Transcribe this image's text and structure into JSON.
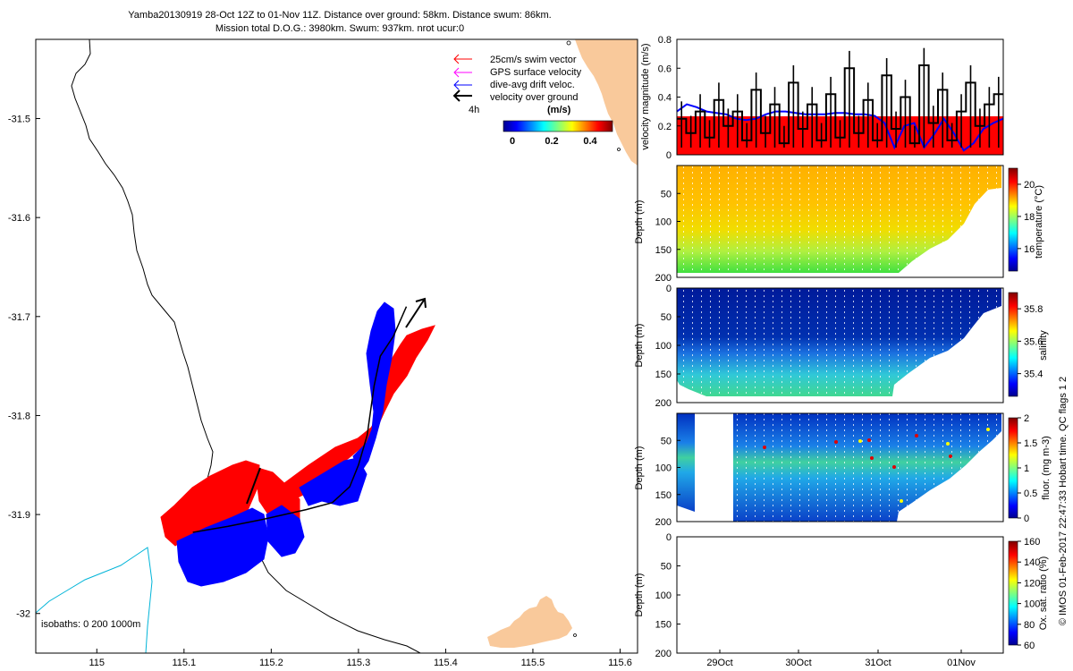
{
  "header": {
    "line1": "Yamba20130919 28-Oct 12Z to 01-Nov 11Z. Distance over ground: 58km. Distance swum: 86km.",
    "line2": "Mission total D.O.G.: 3980km. Swum: 937km. nrot ucur:0"
  },
  "footer_note": "© IMOS 01-Feb-2017 22:47:33 Hobart time. QC flags 1  2",
  "colors": {
    "land": "#f9c99b",
    "swim_vector": "#ff0000",
    "gps_surface": "#ff00ff",
    "drift": "#0000ff",
    "over_ground": "#000000",
    "isobath_200": "#000000",
    "isobath_1000": "#00b4d8"
  },
  "map": {
    "legend": [
      {
        "label": "25cm/s swim vector",
        "color": "#ff0000"
      },
      {
        "label": "GPS surface velocity",
        "color": "#ff00ff"
      },
      {
        "label": "dive-avg drift veloc.",
        "color": "#0000ff"
      },
      {
        "label": "velocity over ground",
        "color": "#000000"
      }
    ],
    "time_marker": "4h",
    "colorbar_title": "(m/s)",
    "colorbar_ticks": [
      "0",
      "0.2",
      "0.4"
    ],
    "isobaths_text": "isobaths: 0   200  1000m"
  },
  "chart_data": [
    {
      "type": "line",
      "panel": "map",
      "xlim": [
        114.93,
        115.62
      ],
      "ylim": [
        -32.04,
        -31.42
      ],
      "x_ticks": [
        "115",
        "115.1",
        "115.2",
        "115.3",
        "115.4",
        "115.5",
        "115.6"
      ],
      "y_ticks": [
        "-31.5",
        "-31.6",
        "-31.7",
        "-31.8",
        "-31.9",
        "-32"
      ],
      "series": [
        {
          "points": [
            [
              115.11,
              -31.918
            ],
            [
              115.15,
              -31.912
            ],
            [
              115.19,
              -31.905
            ],
            [
              115.24,
              -31.895
            ],
            [
              115.27,
              -31.888
            ],
            [
              115.29,
              -31.872
            ],
            [
              115.3,
              -31.85
            ],
            [
              115.31,
              -31.82
            ],
            [
              115.318,
              -31.77
            ],
            [
              115.325,
              -31.74
            ],
            [
              115.34,
              -31.72
            ],
            [
              115.355,
              -31.69
            ]
          ]
        }
      ]
    },
    {
      "type": "line",
      "panel": "velocity",
      "ylabel": "velocity magnitude (m/s)",
      "ylim": [
        0,
        0.8
      ],
      "y_ticks": [
        "0",
        "0.2",
        "0.4",
        "0.6",
        "0.8"
      ],
      "series": [
        {
          "color": "#ff0000",
          "values": [
            0.25,
            0.25,
            0.25,
            0.25,
            0.25,
            0.25,
            0.25,
            0.25,
            0.25,
            0.25
          ]
        },
        {
          "color": "#0000ff",
          "values": [
            0.3,
            0.35,
            0.33,
            0.3,
            0.29,
            0.28,
            0.25,
            0.24,
            0.25,
            0.28,
            0.3,
            0.3,
            0.29,
            0.28,
            0.28,
            0.28,
            0.29,
            0.29,
            0.28,
            0.28,
            0.27,
            0.22,
            0.05,
            0.2,
            0.22,
            0.05,
            0.14,
            0.25,
            0.15,
            0.03,
            0.08,
            0.18,
            0.22,
            0.25
          ]
        },
        {
          "color": "#000000",
          "values": [
            0.25,
            0.15,
            0.3,
            0.12,
            0.38,
            0.2,
            0.3,
            0.1,
            0.45,
            0.15,
            0.35,
            0.08,
            0.5,
            0.18,
            0.35,
            0.1,
            0.42,
            0.12,
            0.6,
            0.15,
            0.38,
            0.1,
            0.55,
            0.18,
            0.4,
            0.08,
            0.62,
            0.22,
            0.45,
            0.1,
            0.3,
            0.5,
            0.2,
            0.35,
            0.42
          ]
        }
      ]
    },
    {
      "type": "heatmap",
      "panel": "temperature",
      "ylabel": "Depth (m)",
      "colorbar_label": "temperature (°C)",
      "colorbar_ticks": [
        "16",
        "18",
        "20"
      ],
      "y_ticks": [
        "50",
        "100",
        "150",
        "200"
      ]
    },
    {
      "type": "heatmap",
      "panel": "salinity",
      "ylabel": "Depth (m)",
      "colorbar_label": "salinity",
      "colorbar_ticks": [
        "35.4",
        "35.6",
        "35.8"
      ],
      "y_ticks": [
        "0",
        "50",
        "100",
        "150",
        "200"
      ]
    },
    {
      "type": "heatmap",
      "panel": "fluorescence",
      "ylabel": "Depth (m)",
      "colorbar_label": "fluor. (mg m-3)",
      "colorbar_ticks": [
        "0",
        "0.5",
        "1",
        "1.5",
        "2"
      ],
      "y_ticks": [
        "50",
        "100",
        "150",
        "200"
      ]
    },
    {
      "type": "heatmap",
      "panel": "oxygen",
      "ylabel": "Depth (m)",
      "colorbar_label": "Ox. sat. ratio (%)",
      "colorbar_ticks": [
        "60",
        "80",
        "100",
        "120",
        "140",
        "160"
      ],
      "y_ticks": [
        "0",
        "50",
        "100",
        "150",
        "200"
      ],
      "x_ticks": [
        "29Oct",
        "30Oct",
        "31Oct",
        "01Nov"
      ]
    }
  ]
}
